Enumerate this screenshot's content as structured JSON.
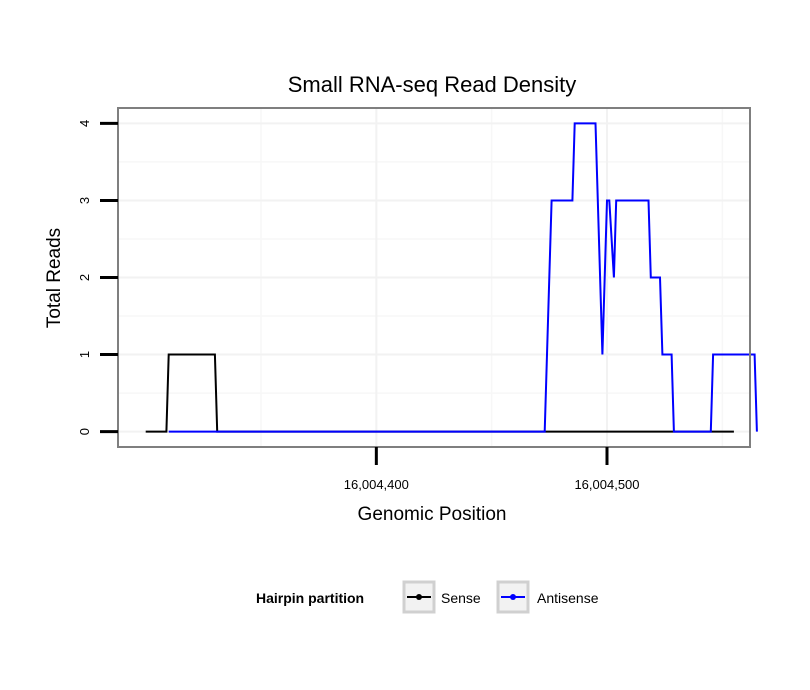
{
  "chart_data": {
    "type": "line",
    "title": "Small RNA-seq Read Density",
    "xlabel": "Genomic Position",
    "ylabel": "Total Reads",
    "xlim": [
      16004288,
      16004562
    ],
    "ylim": [
      -0.2,
      4.2
    ],
    "x_ticks": [
      16004400,
      16004500
    ],
    "x_tick_labels": [
      "16,004,400",
      "16,004,500"
    ],
    "y_ticks": [
      0,
      1,
      2,
      3,
      4
    ],
    "y_tick_labels": [
      "0",
      "1",
      "2",
      "3",
      "4"
    ],
    "grid": true,
    "legend": {
      "title": "Hairpin partition",
      "position": "bottom",
      "entries": [
        "Sense",
        "Antisense"
      ]
    },
    "series": [
      {
        "name": "Sense",
        "color": "#000000",
        "x": [
          16004300,
          16004309,
          16004310,
          16004330,
          16004331,
          16004555
        ],
        "y": [
          0,
          0,
          1,
          1,
          0,
          0
        ]
      },
      {
        "name": "Antisense",
        "color": "#0000ff",
        "x": [
          16004310,
          16004473,
          16004475,
          16004476,
          16004485,
          16004486,
          16004495,
          16004497,
          16004498,
          16004500,
          16004501,
          16004503,
          16004504,
          16004505,
          16004506,
          16004518,
          16004519,
          16004523,
          16004524,
          16004528,
          16004529,
          16004545,
          16004546,
          16004564,
          16004565
        ],
        "y": [
          0,
          0,
          2,
          3,
          3,
          4,
          4,
          2,
          1,
          3,
          3,
          2,
          3,
          3,
          3,
          3,
          2,
          2,
          1,
          1,
          0,
          0,
          1,
          1,
          0
        ]
      }
    ]
  }
}
